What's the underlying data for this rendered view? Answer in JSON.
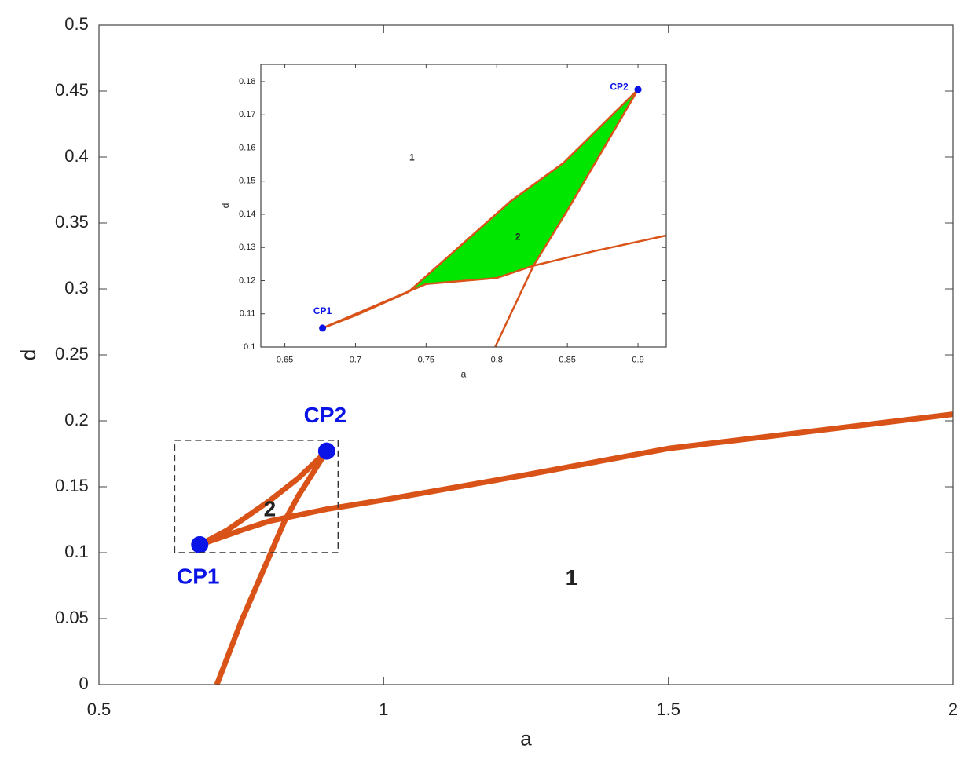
{
  "chart_data": [
    {
      "type": "line",
      "x_label": "a",
      "y_label": "d",
      "xlim": [
        0.5,
        2
      ],
      "xticks": [
        0.5,
        1,
        1.5,
        2
      ],
      "ylim": [
        0,
        0.5
      ],
      "yticks": [
        0,
        0.05,
        0.1,
        0.15,
        0.2,
        0.25,
        0.3,
        0.35,
        0.4,
        0.45,
        0.5
      ],
      "series": [
        {
          "type": "line",
          "color": "#d95319",
          "x": [
            0.677,
            0.75,
            0.8,
            0.9,
            1.0,
            1.25,
            1.5,
            1.75,
            2.0
          ],
          "values": [
            0.106,
            0.117,
            0.124,
            0.133,
            0.14,
            0.159,
            0.179,
            0.192,
            0.205
          ]
        },
        {
          "type": "line",
          "color": "#d95319",
          "x": [
            0.707,
            0.75,
            0.8,
            0.826,
            0.85,
            0.9
          ],
          "values": [
            0,
            0.048,
            0.098,
            0.124,
            0.143,
            0.177
          ]
        },
        {
          "type": "line",
          "color": "#d95319",
          "x": [
            0.677,
            0.725,
            0.8,
            0.85,
            0.9
          ],
          "values": [
            0.106,
            0.117,
            0.1395,
            0.1565,
            0.177
          ]
        },
        {
          "type": "scatter",
          "color": "#0a14e6",
          "x": [
            0.677,
            0.9
          ],
          "values": [
            0.106,
            0.177
          ],
          "labels": [
            "CP1",
            "CP2"
          ]
        }
      ],
      "annotations": [
        "1",
        "2"
      ]
    },
    {
      "type": "line",
      "x_label": "a",
      "y_label": "d",
      "xlim": [
        0.633,
        0.92
      ],
      "xticks": [
        0.65,
        0.7,
        0.75,
        0.8,
        0.85,
        0.9
      ],
      "ylim": [
        0.1,
        0.1852
      ],
      "yticks": [
        0.1,
        0.11,
        0.12,
        0.13,
        0.14,
        0.15,
        0.16,
        0.17,
        0.18
      ],
      "fill_color": "#00e600",
      "series": [
        {
          "type": "line",
          "color": "#d95319",
          "x": [
            0.6767,
            0.75,
            0.8,
            0.826,
            0.87,
            0.92
          ],
          "values": [
            0.1057,
            0.119,
            0.1208,
            0.1245,
            0.129,
            0.1336
          ]
        },
        {
          "type": "line",
          "color": "#d95319",
          "x": [
            0.7989,
            0.826,
            0.85,
            0.9
          ],
          "values": [
            0.1,
            0.1245,
            0.1412,
            0.1776
          ]
        },
        {
          "type": "line",
          "color": "#d95319",
          "x": [
            0.6767,
            0.7,
            0.7375,
            0.81,
            0.847,
            0.9
          ],
          "values": [
            0.1057,
            0.1095,
            0.1166,
            0.144,
            0.1554,
            0.1776
          ]
        },
        {
          "type": "scatter",
          "color": "#0a14e6",
          "x": [
            0.6767,
            0.9
          ],
          "values": [
            0.1057,
            0.1776
          ],
          "labels": [
            "CP1",
            "CP2"
          ]
        }
      ],
      "annotations": [
        "1",
        "2"
      ]
    }
  ]
}
